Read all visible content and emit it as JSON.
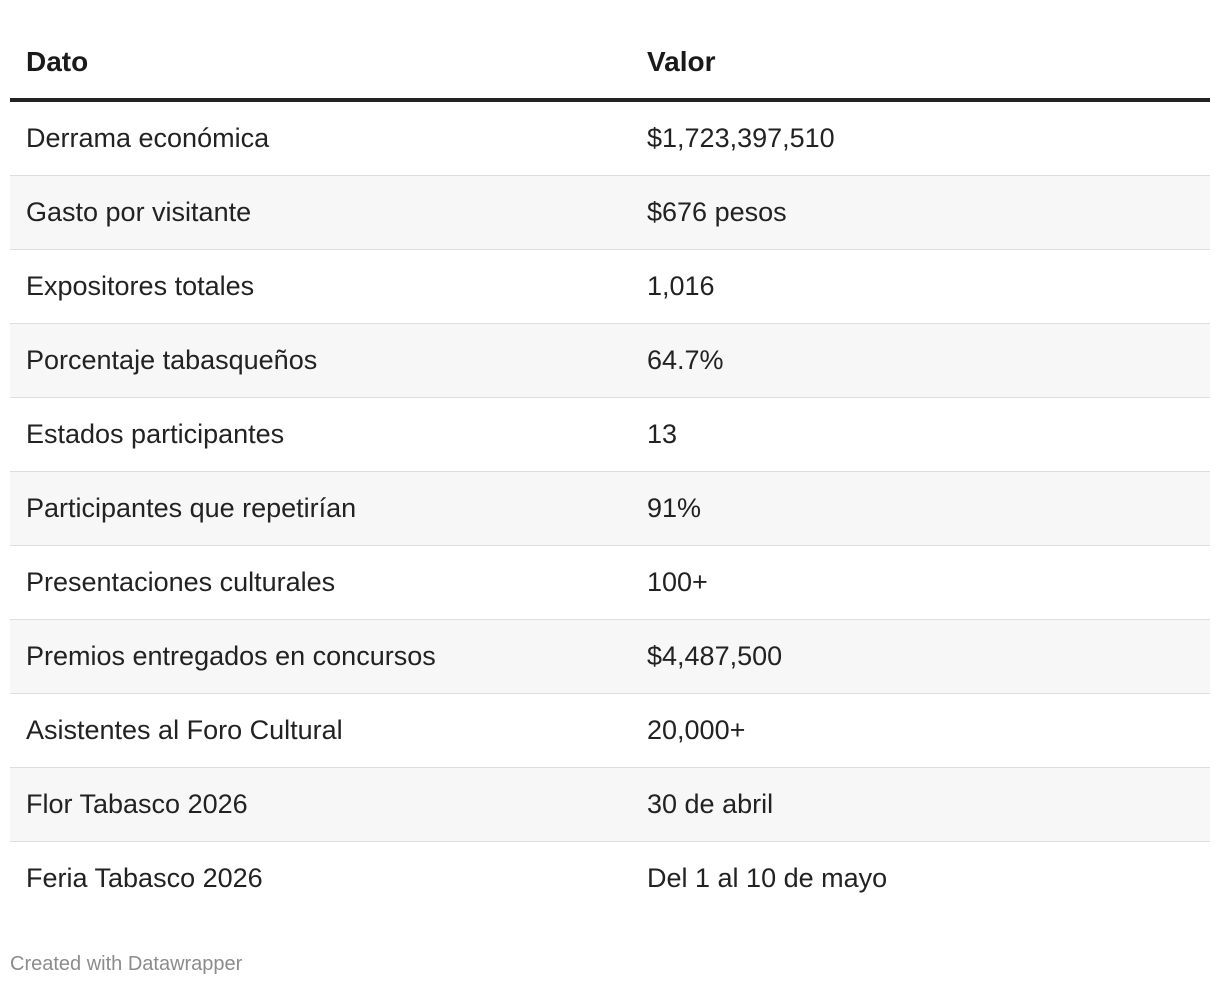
{
  "table": {
    "headers": [
      "Dato",
      "Valor"
    ],
    "rows": [
      [
        "Derrama económica",
        "$1,723,397,510"
      ],
      [
        "Gasto por visitante",
        "$676 pesos"
      ],
      [
        "Expositores totales",
        "1,016"
      ],
      [
        "Porcentaje tabasqueños",
        "64.7%"
      ],
      [
        "Estados participantes",
        "13"
      ],
      [
        "Participantes que repetirían",
        "91%"
      ],
      [
        "Presentaciones culturales",
        "100+"
      ],
      [
        "Premios entregados en concursos",
        "$4,487,500"
      ],
      [
        "Asistentes al Foro Cultural",
        "20,000+"
      ],
      [
        "Flor Tabasco 2026",
        "30 de abril"
      ],
      [
        "Feria Tabasco 2026",
        "Del 1 al 10 de mayo"
      ]
    ]
  },
  "footer": {
    "credit": "Created with Datawrapper"
  }
}
